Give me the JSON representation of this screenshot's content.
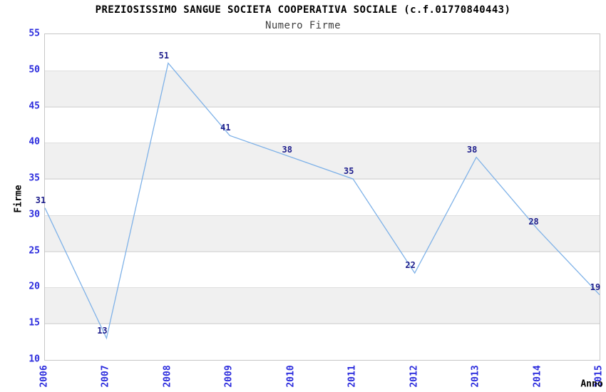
{
  "chart": {
    "title": "PREZIOSISSIMO SANGUE SOCIETA COOPERATIVA SOCIALE (c.f.01770840443)",
    "subtitle": "Numero Firme",
    "y_axis_title": "Firme",
    "x_axis_title": "Anno"
  },
  "chart_data": {
    "type": "line",
    "title": "PREZIOSISSIMO SANGUE SOCIETA COOPERATIVA SOCIALE (c.f.01770840443)",
    "subtitle": "Numero Firme",
    "xlabel": "Anno",
    "ylabel": "Firme",
    "categories": [
      "2006",
      "2007",
      "2008",
      "2009",
      "2010",
      "2011",
      "2012",
      "2013",
      "2014",
      "2015"
    ],
    "values": [
      31,
      13,
      51,
      41,
      38,
      35,
      22,
      38,
      28,
      19
    ],
    "ylim": [
      10,
      55
    ],
    "ytick_step": 5,
    "yticks": [
      10,
      15,
      20,
      25,
      30,
      35,
      40,
      45,
      50,
      55
    ],
    "grid": "horizontal-alternating-bands",
    "legend_position": "none",
    "colors": {
      "line": "#7fb2e8",
      "point_label": "#1e1e8c",
      "tick_label": "#2b2bdd",
      "band": "#f0f0f0",
      "grid_line": "#dedede",
      "plot_border": "#c6c6c6",
      "title": "#000000",
      "subtitle": "#404040"
    }
  }
}
